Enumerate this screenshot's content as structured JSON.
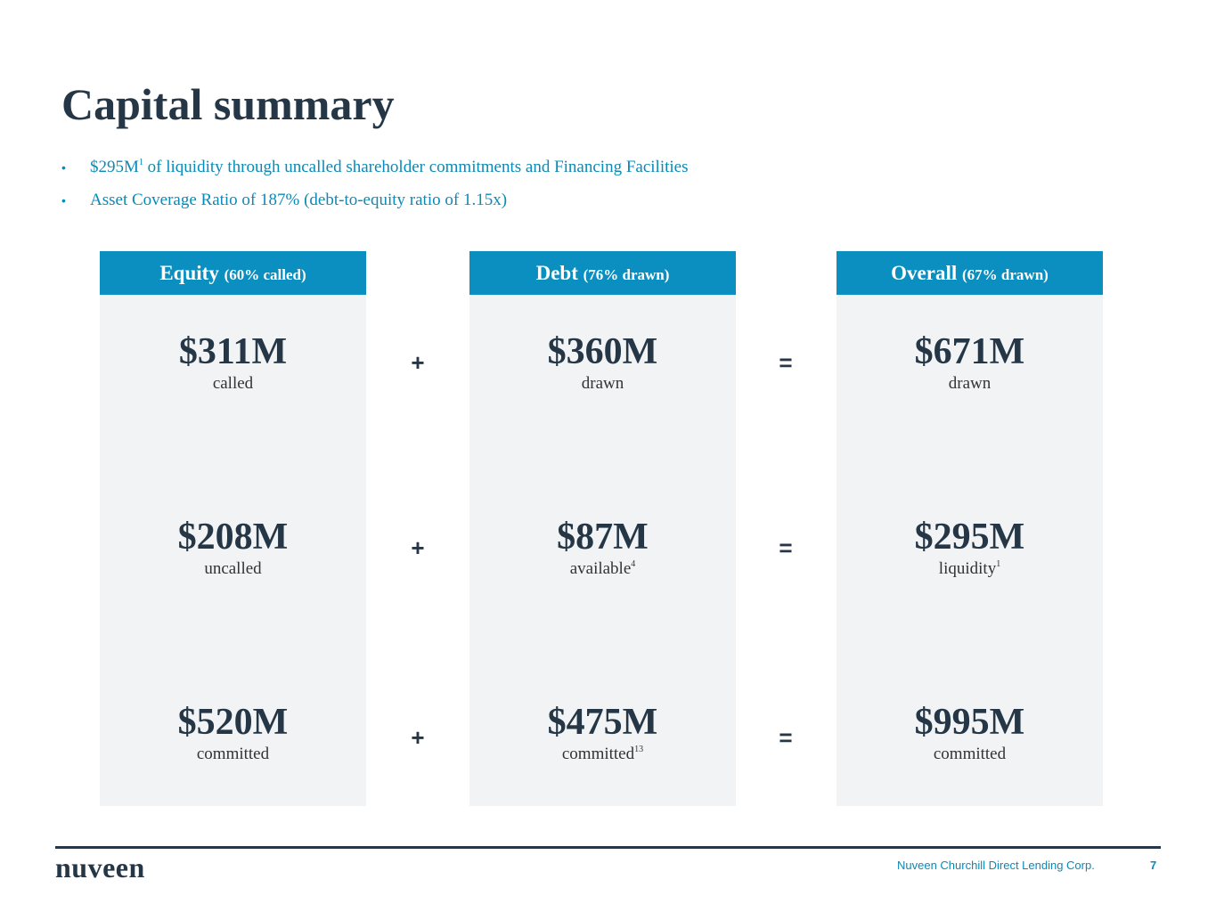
{
  "title": "Capital summary",
  "bullets": [
    {
      "text": "$295M",
      "sup": "1",
      "rest": " of liquidity through uncalled shareholder commitments and Financing Facilities"
    },
    {
      "text": "Asset Coverage Ratio of 187% (debt-to-equity ratio of 1.15x)"
    }
  ],
  "columns": [
    {
      "heading": "Equity",
      "subheading": "(60% called)",
      "rows": [
        {
          "value": "$311M",
          "label": "called"
        },
        {
          "value": "$208M",
          "label": "uncalled"
        },
        {
          "value": "$520M",
          "label": "committed"
        }
      ]
    },
    {
      "heading": "Debt",
      "subheading": "(76% drawn)",
      "rows": [
        {
          "value": "$360M",
          "label": "drawn"
        },
        {
          "value": "$87M",
          "label": "available",
          "sup": "4"
        },
        {
          "value": "$475M",
          "label": "committed",
          "sup": "13"
        }
      ]
    },
    {
      "heading": "Overall",
      "subheading": "(67% drawn)",
      "rows": [
        {
          "value": "$671M",
          "label": "drawn"
        },
        {
          "value": "$295M",
          "label": "liquidity",
          "sup": "1"
        },
        {
          "value": "$995M",
          "label": "committed"
        }
      ]
    }
  ],
  "operators": [
    [
      "+",
      "="
    ],
    [
      "+",
      "="
    ],
    [
      "+",
      "="
    ]
  ],
  "footer": {
    "logo": "nuveen",
    "company": "Nuveen Churchill Direct Lending Corp.",
    "page": "7"
  }
}
